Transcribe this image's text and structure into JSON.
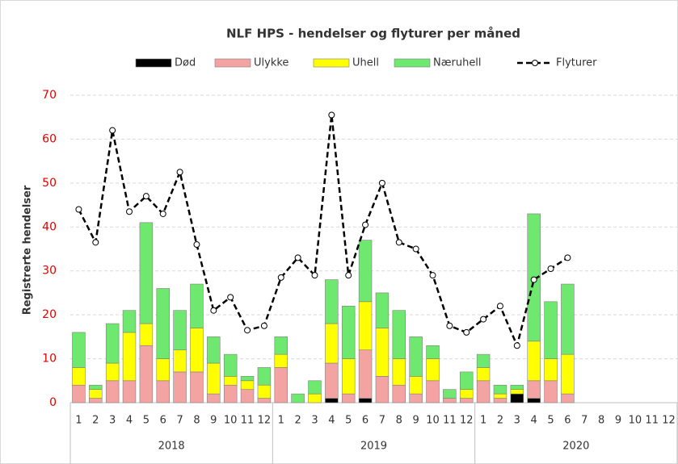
{
  "chart_data": {
    "type": "bar",
    "title": "NLF HPS - hendelser og flyturer per måned",
    "ylabel": "Registrerte hendelser",
    "categories": [
      "1",
      "2",
      "3",
      "4",
      "5",
      "6",
      "7",
      "8",
      "9",
      "10",
      "11",
      "12",
      "1",
      "2",
      "3",
      "4",
      "5",
      "6",
      "7",
      "8",
      "9",
      "10",
      "11",
      "12",
      "1",
      "2",
      "3",
      "4",
      "5",
      "6",
      "7",
      "8",
      "9",
      "10",
      "11",
      "12"
    ],
    "groups": [
      "2018",
      "2019",
      "2020"
    ],
    "ylim": [
      0,
      70
    ],
    "yticks": [
      0,
      10,
      20,
      30,
      40,
      50,
      60,
      70
    ],
    "grid": true,
    "series": [
      {
        "name": "Død",
        "color": "#000000",
        "values": [
          0,
          0,
          0,
          0,
          0,
          0,
          0,
          0,
          0,
          0,
          0,
          0,
          0,
          0,
          0,
          1,
          0,
          1,
          0,
          0,
          0,
          0,
          0,
          0,
          0,
          0,
          2,
          1,
          0,
          0,
          null,
          null,
          null,
          null,
          null,
          null
        ]
      },
      {
        "name": "Ulykke",
        "color": "#f4a3a3",
        "values": [
          4,
          1,
          5,
          5,
          13,
          5,
          7,
          7,
          2,
          4,
          3,
          1,
          8,
          0,
          0,
          8,
          2,
          11,
          6,
          4,
          2,
          5,
          1,
          1,
          5,
          1,
          0,
          4,
          5,
          2,
          null,
          null,
          null,
          null,
          null,
          null
        ]
      },
      {
        "name": "Uhell",
        "color": "#ffff00",
        "values": [
          4,
          2,
          4,
          11,
          5,
          5,
          5,
          10,
          7,
          2,
          2,
          3,
          3,
          0,
          2,
          9,
          8,
          11,
          11,
          6,
          4,
          5,
          0,
          2,
          3,
          1,
          1,
          9,
          5,
          9,
          null,
          null,
          null,
          null,
          null,
          null
        ]
      },
      {
        "name": "Næruhell",
        "color": "#6ee86e",
        "values": [
          8,
          1,
          9,
          5,
          23,
          16,
          9,
          10,
          6,
          5,
          1,
          4,
          4,
          2,
          3,
          10,
          12,
          14,
          8,
          11,
          9,
          3,
          2,
          4,
          3,
          2,
          1,
          29,
          13,
          16,
          null,
          null,
          null,
          null,
          null,
          null
        ]
      },
      {
        "name": "Flyturer",
        "type": "line",
        "color": "#000000",
        "values": [
          44,
          36.5,
          62,
          43.5,
          47,
          43,
          52.5,
          36,
          21,
          24,
          16.5,
          17.5,
          28.5,
          33,
          29,
          65.5,
          29,
          40.5,
          50,
          36.5,
          35,
          29,
          17.5,
          16,
          19,
          22,
          13,
          28,
          30.5,
          33,
          null,
          null,
          null,
          null,
          null,
          null
        ]
      }
    ]
  }
}
